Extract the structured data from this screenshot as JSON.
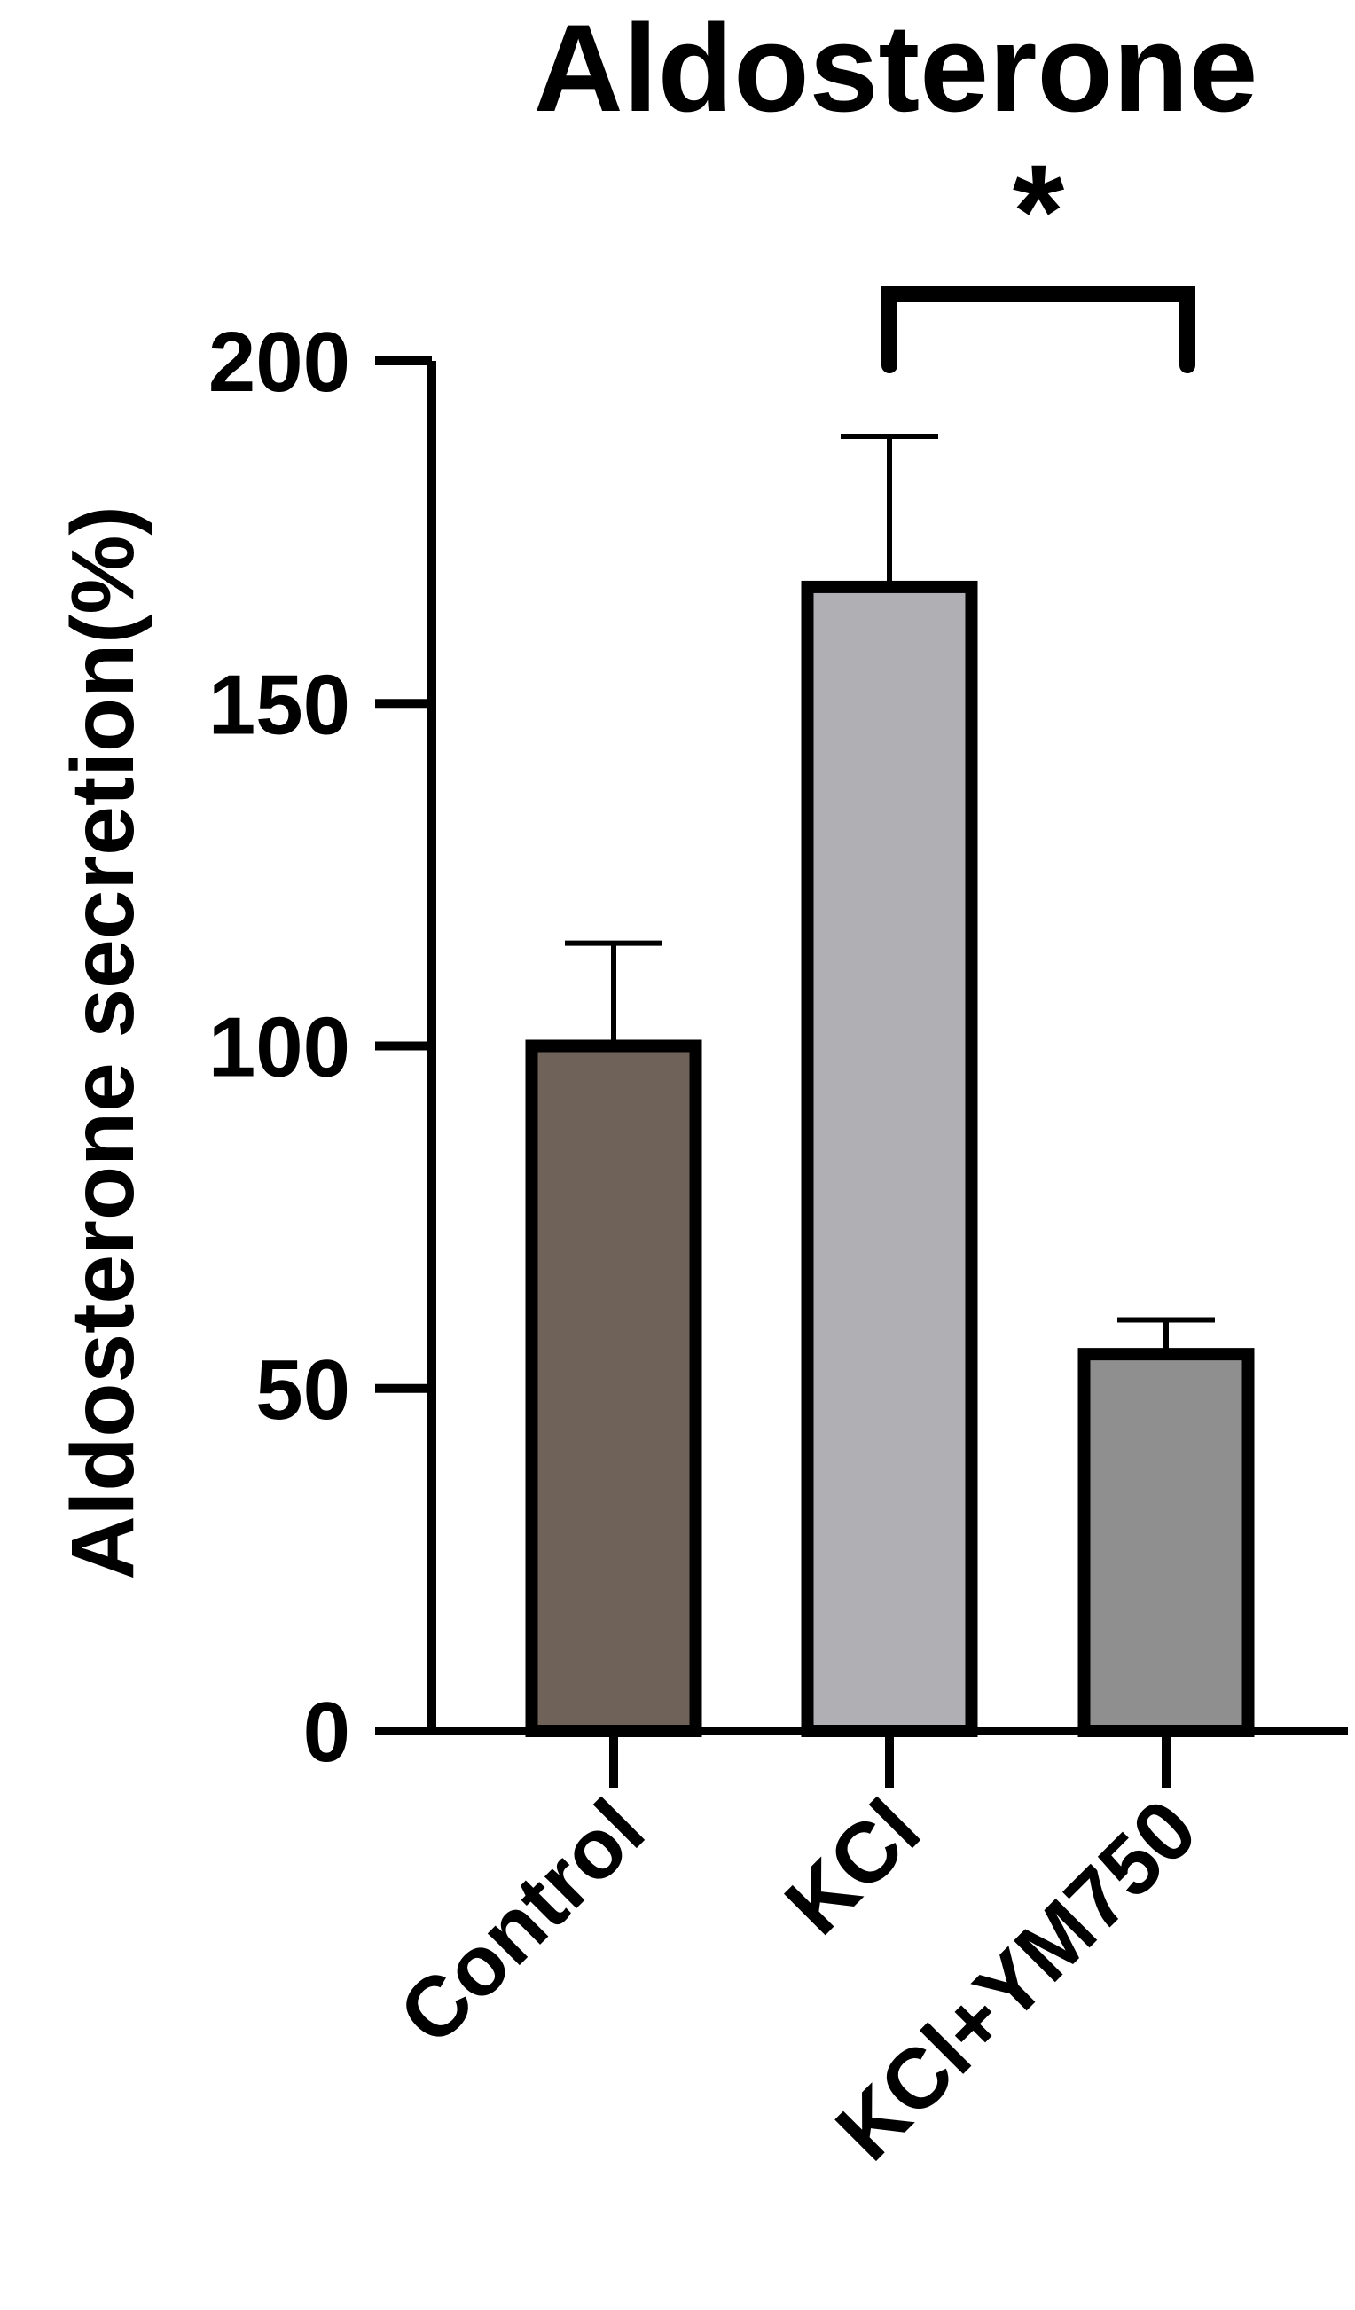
{
  "chart_data": {
    "type": "bar",
    "title": "Aldosterone",
    "y_label": "Aldosterone secretion(%)",
    "categories": [
      "Control",
      "KCl",
      "KCl+YM750"
    ],
    "values": [
      100,
      167,
      55
    ],
    "errors": [
      15,
      22,
      5
    ],
    "colors": [
      "#6f6259",
      "#b0afb4",
      "#8f8f8f"
    ],
    "ylim": [
      0,
      200
    ],
    "yticks": [
      0,
      50,
      100,
      150,
      200
    ],
    "annotations": [
      {
        "text": "*"
      }
    ]
  }
}
